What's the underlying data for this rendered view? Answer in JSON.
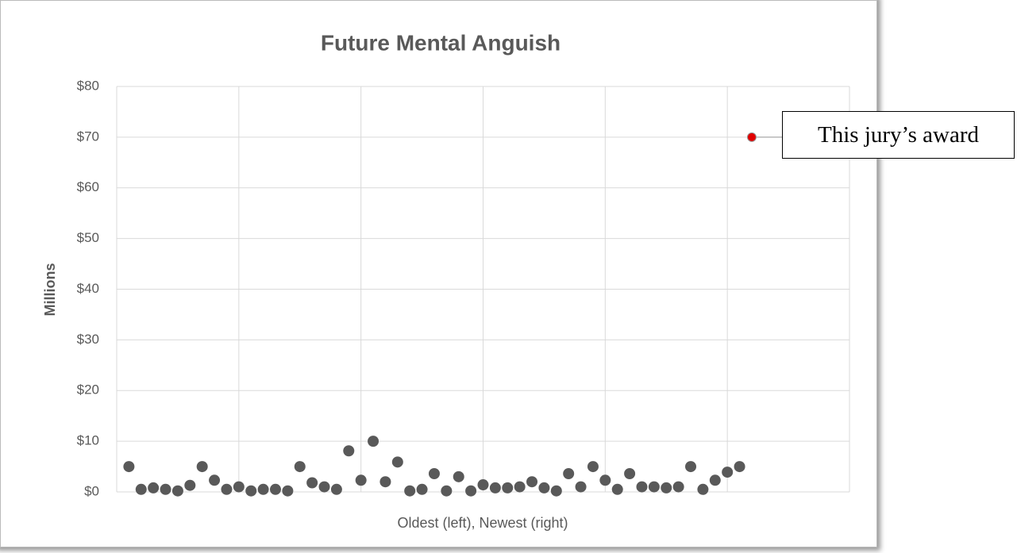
{
  "chart_data": {
    "type": "scatter",
    "title": "Future Mental Anguish",
    "x_label": "Oldest (left), Newest (right)",
    "y_label": "Millions",
    "annotation": "This jury’s award",
    "xlim": [
      0,
      60
    ],
    "xticks": [
      0,
      10,
      20,
      30,
      40,
      50,
      60
    ],
    "ylim": [
      0,
      80
    ],
    "yticks": [
      {
        "value": 0,
        "label": "$0"
      },
      {
        "value": 10,
        "label": "$10"
      },
      {
        "value": 20,
        "label": "$20"
      },
      {
        "value": 30,
        "label": "$30"
      },
      {
        "value": 40,
        "label": "$40"
      },
      {
        "value": 50,
        "label": "$50"
      },
      {
        "value": 60,
        "label": "$60"
      },
      {
        "value": 70,
        "label": "$70"
      },
      {
        "value": 80,
        "label": "$80"
      }
    ],
    "grid": true,
    "series": [
      {
        "color": "#595959",
        "x": [
          1,
          2,
          3,
          4,
          5,
          6,
          7,
          8,
          9,
          10,
          11,
          12,
          13,
          14,
          15,
          16,
          17,
          18,
          19,
          20,
          21,
          22,
          23,
          24,
          25,
          26,
          27,
          28,
          29,
          30,
          31,
          32,
          33,
          34,
          35,
          36,
          37,
          38,
          39,
          40,
          41,
          42,
          43,
          44,
          45,
          46,
          47,
          48,
          49,
          50,
          51
        ],
        "values": [
          5,
          0.5,
          0.8,
          0.5,
          0.2,
          1.3,
          5,
          2.3,
          0.5,
          1,
          0.2,
          0.5,
          0.5,
          0.2,
          5,
          1.8,
          1,
          0.5,
          8.1,
          2.3,
          10,
          2,
          5.9,
          0.2,
          0.5,
          3.6,
          0.2,
          3,
          0.2,
          1.4,
          0.8,
          0.8,
          1,
          2,
          0.8,
          0.2,
          3.6,
          1,
          5,
          2.3,
          0.5,
          3.6,
          1,
          1,
          0.8,
          1,
          5,
          0.5,
          2.3,
          3.9,
          5
        ]
      },
      {
        "color": "#e00000",
        "x": [
          52
        ],
        "values": [
          70
        ]
      }
    ]
  }
}
